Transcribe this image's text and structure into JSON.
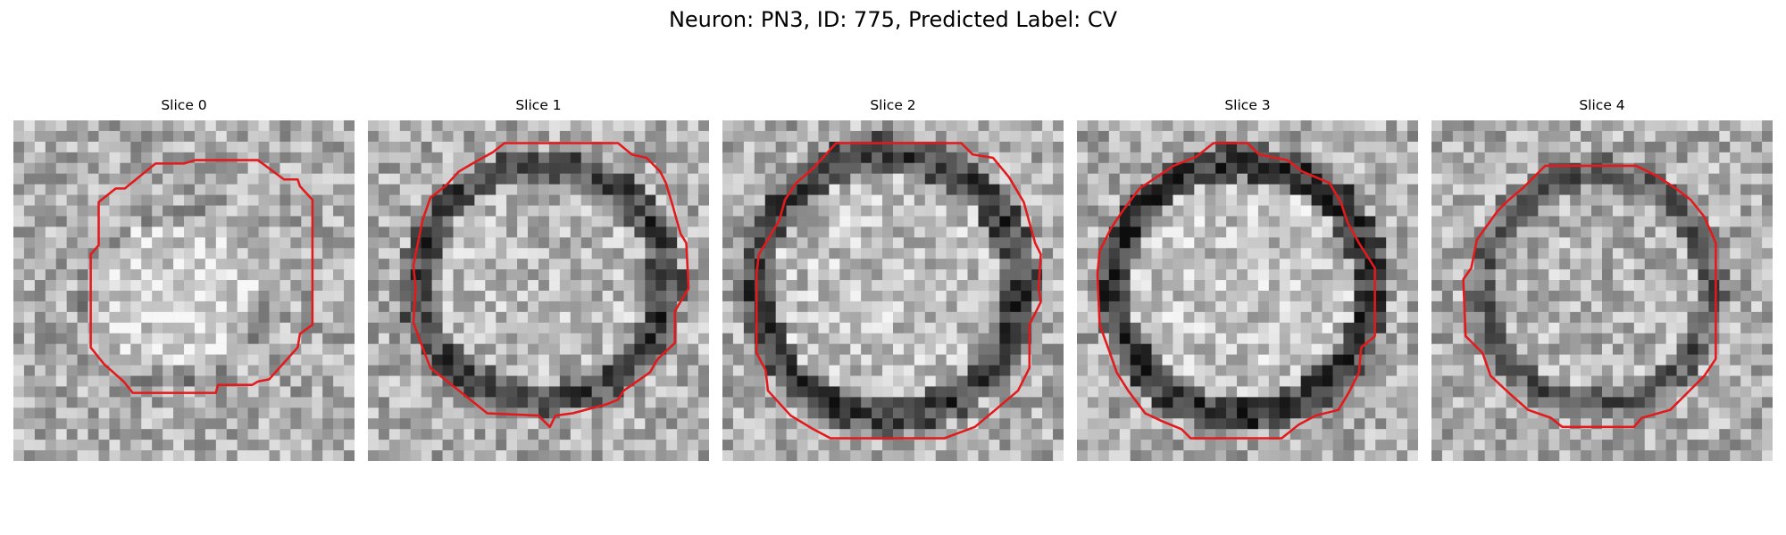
{
  "figure": {
    "title": "Neuron: PN3, ID: 775, Predicted Label: CV"
  },
  "panels": [
    {
      "title": "Slice 0",
      "image": "grayscale EM patch with dark membrane ring",
      "outline_color": "#e31a1c"
    },
    {
      "title": "Slice 1",
      "image": "grayscale EM patch with dark membrane ring",
      "outline_color": "#e31a1c"
    },
    {
      "title": "Slice 2",
      "image": "grayscale EM patch with dark membrane ring",
      "outline_color": "#e31a1c"
    },
    {
      "title": "Slice 3",
      "image": "grayscale EM patch with dark membrane ring",
      "outline_color": "#e31a1c"
    },
    {
      "title": "Slice 4",
      "image": "grayscale EM patch with dark membrane ring",
      "outline_color": "#e31a1c"
    }
  ]
}
